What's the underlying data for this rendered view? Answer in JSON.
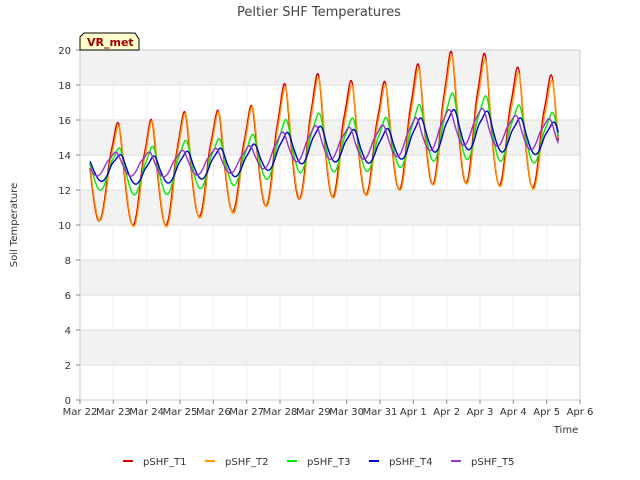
{
  "chart_data": {
    "type": "line",
    "title": "Peltier SHF Temperatures",
    "xlabel": "Time",
    "ylabel": "Soil Temperature",
    "badge": "VR_met",
    "ylim": [
      0,
      20
    ],
    "yticks": [
      0,
      2,
      4,
      6,
      8,
      10,
      12,
      14,
      16,
      18,
      20
    ],
    "xlim": [
      0,
      15
    ],
    "xticks": [
      {
        "v": 0,
        "label": "Mar 22"
      },
      {
        "v": 1,
        "label": "Mar 23"
      },
      {
        "v": 2,
        "label": "Mar 24"
      },
      {
        "v": 3,
        "label": "Mar 25"
      },
      {
        "v": 4,
        "label": "Mar 26"
      },
      {
        "v": 5,
        "label": "Mar 27"
      },
      {
        "v": 6,
        "label": "Mar 28"
      },
      {
        "v": 7,
        "label": "Mar 29"
      },
      {
        "v": 8,
        "label": "Mar 30"
      },
      {
        "v": 9,
        "label": "Mar 31"
      },
      {
        "v": 10,
        "label": "Apr 1"
      },
      {
        "v": 11,
        "label": "Apr 2"
      },
      {
        "v": 12,
        "label": "Apr 3"
      },
      {
        "v": 13,
        "label": "Apr 4"
      },
      {
        "v": 14,
        "label": "Apr 5"
      },
      {
        "v": 15,
        "label": "Apr 6"
      }
    ],
    "grid": true,
    "legend_position": "bottom",
    "series": [
      {
        "name": "pSHF_T1",
        "color": "#dd0000",
        "x0": 0.3,
        "x1": 14.35,
        "phase": 0.58,
        "base": [
          12.6,
          13.0,
          12.7,
          13.2,
          13.5,
          13.6,
          14.5,
          15.0,
          14.8,
          14.8,
          15.5,
          16.0,
          16.0,
          15.5,
          15.2
        ],
        "amp": [
          2.6,
          2.6,
          3.0,
          3.0,
          2.8,
          2.8,
          3.2,
          3.4,
          3.2,
          3.0,
          3.3,
          3.6,
          3.6,
          3.3,
          3.1
        ]
      },
      {
        "name": "pSHF_T2",
        "color": "#ff9900",
        "x0": 0.3,
        "x1": 14.35,
        "phase": 0.6,
        "base": [
          12.5,
          12.9,
          12.6,
          13.1,
          13.4,
          13.5,
          14.4,
          14.9,
          14.6,
          14.7,
          15.3,
          15.9,
          15.8,
          15.3,
          15.0
        ],
        "amp": [
          2.5,
          2.5,
          3.0,
          3.0,
          2.8,
          2.8,
          3.1,
          3.3,
          3.1,
          2.9,
          3.2,
          3.5,
          3.5,
          3.2,
          3.0
        ]
      },
      {
        "name": "pSHF_T3",
        "color": "#00ee00",
        "x0": 0.3,
        "x1": 14.35,
        "phase": 0.62,
        "base": [
          12.9,
          13.2,
          12.9,
          13.3,
          13.5,
          13.6,
          14.3,
          14.7,
          14.5,
          14.5,
          15.0,
          15.6,
          15.5,
          15.2,
          14.9
        ],
        "amp": [
          1.1,
          1.1,
          1.4,
          1.4,
          1.3,
          1.3,
          1.5,
          1.6,
          1.5,
          1.4,
          1.6,
          1.8,
          1.8,
          1.6,
          1.4
        ]
      },
      {
        "name": "pSHF_T4",
        "color": "#0000cc",
        "x0": 0.3,
        "x1": 14.35,
        "phase": 0.66,
        "base": [
          13.0,
          13.3,
          13.0,
          13.3,
          13.5,
          13.6,
          14.2,
          14.6,
          14.5,
          14.4,
          14.9,
          15.4,
          15.4,
          15.1,
          14.9
        ],
        "amp": [
          0.7,
          0.7,
          0.8,
          0.8,
          0.8,
          0.8,
          0.9,
          1.0,
          0.9,
          0.9,
          1.0,
          1.1,
          1.1,
          1.0,
          0.9
        ]
      },
      {
        "name": "pSHF_T5",
        "color": "#9933cc",
        "x0": 0.3,
        "x1": 14.35,
        "phase": 0.52,
        "base": [
          13.3,
          13.5,
          13.4,
          13.5,
          13.6,
          13.7,
          14.3,
          14.7,
          14.6,
          14.7,
          15.0,
          15.5,
          15.6,
          15.3,
          15.1
        ],
        "amp": [
          0.6,
          0.6,
          0.7,
          0.7,
          0.7,
          0.7,
          0.9,
          0.9,
          0.9,
          0.9,
          1.0,
          1.0,
          1.0,
          0.9,
          0.9
        ]
      }
    ]
  }
}
